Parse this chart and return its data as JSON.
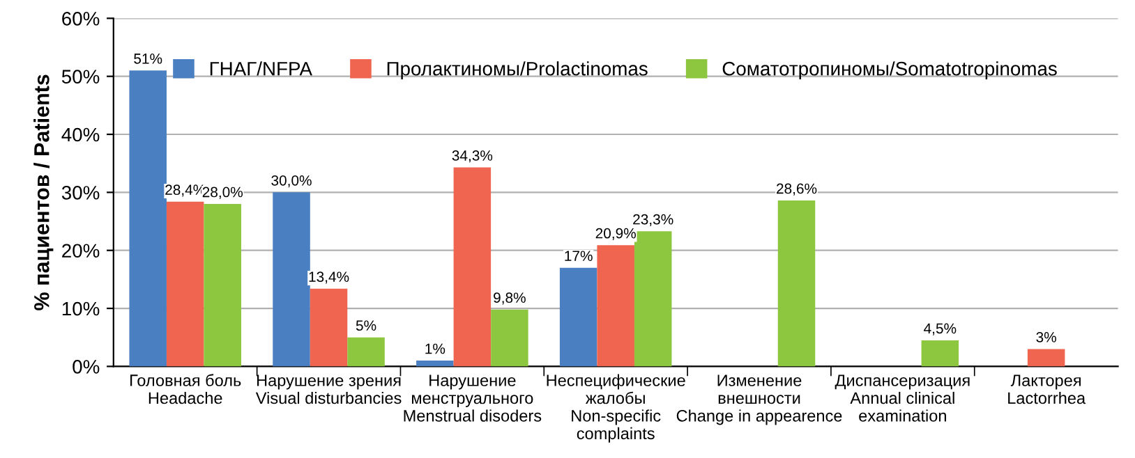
{
  "chart_data": {
    "type": "bar",
    "ylabel": "% пациентов / Patients",
    "categories": [
      "Головная боль\nHeadache",
      "Нарушение зрения\nVisual disturbancies",
      "Нарушение\nменструального\nMenstrual disoders",
      "Неспецифические\nжалобы\nNon-specific\ncomplaints",
      "Изменение\nвнешности\nChange in appearence",
      "Диспансеризация\nAnnual clinical\nexamination",
      "Лакторея\nLactorrhea"
    ],
    "series": [
      {
        "name": "ГНАГ/NFPA",
        "color": "#4a7fc1",
        "values": [
          51,
          30.0,
          1,
          17,
          null,
          null,
          null
        ],
        "value_labels": [
          "51%",
          "30,0%",
          "1%",
          "17%",
          null,
          null,
          null
        ]
      },
      {
        "name": "Пролактиномы/Prolactinomas",
        "color": "#f06550",
        "values": [
          28.4,
          13.4,
          34.3,
          20.9,
          null,
          null,
          3
        ],
        "value_labels": [
          "28,4%",
          "13,4%",
          "34,3%",
          "20,9%",
          null,
          null,
          "3%"
        ]
      },
      {
        "name": "Соматотропиномы/Somatotropinomas",
        "color": "#8dc63f",
        "values": [
          28.0,
          5,
          9.8,
          23.3,
          28.6,
          4.5,
          null
        ],
        "value_labels": [
          "28,0%",
          "5%",
          "9,8%",
          "23,3%",
          "28,6%",
          "4,5%",
          null
        ]
      }
    ],
    "ylim": [
      0,
      60
    ],
    "yticks": [
      {
        "value": 0,
        "label": "0%"
      },
      {
        "value": 10,
        "label": "10%"
      },
      {
        "value": 20,
        "label": "20%"
      },
      {
        "value": 30,
        "label": "30%"
      },
      {
        "value": 40,
        "label": "40%"
      },
      {
        "value": 50,
        "label": "50%"
      },
      {
        "value": 60,
        "label": "60%"
      }
    ],
    "grid": "y",
    "legend": "top"
  }
}
